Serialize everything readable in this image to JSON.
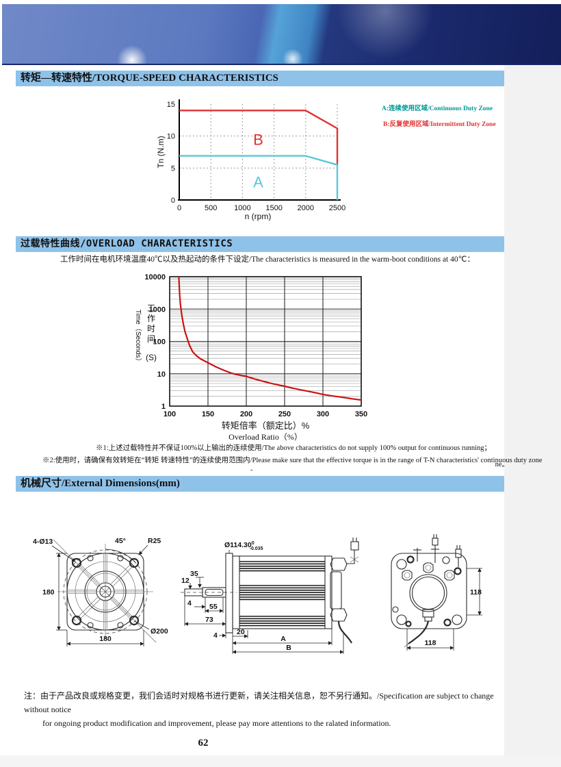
{
  "sections": {
    "torque": {
      "title": "转矩—转速特性/TORQUE-SPEED CHARACTERISTICS"
    },
    "overload": {
      "title": "过载特性曲线/OVERLOAD CHARACTERISTICS",
      "description": "工作时间在电机环境温度40℃以及热起动的条件下设定/The characteristics is measured in the warm-boot conditions at 40℃：",
      "note1": "※1:上述过载特性并不保证100%以上输出的连续使用/The above characteristics do not supply 100% output for continuous running；",
      "note2": "※2:使用时，请确保有效转矩在“转矩 转速特性”的连续使用范围内/Please make sure that the effective torque is in the range of T-N characteristics' continuous duty zone",
      "note2_dash": "-",
      "note_overflow": "ne。"
    },
    "dimensions": {
      "title": "机械尺寸/External Dimensions(mm)"
    }
  },
  "legend": {
    "a": {
      "label": "A:连续使用区域/Continuous Duty Zone",
      "color": "#009693"
    },
    "b": {
      "label": "B:反复使用区域/Intermittent Duty Zone",
      "color": "#e03131"
    }
  },
  "chart_data": [
    {
      "type": "line",
      "title": "Torque-Speed Characteristics",
      "xlabel": "n (rpm)",
      "ylabel": "Tn (N.m)",
      "xlim": [
        0,
        2500
      ],
      "ylim": [
        0,
        15
      ],
      "xticks": [
        0,
        500,
        1000,
        1500,
        2000,
        2500
      ],
      "yticks": [
        0,
        5,
        10,
        15
      ],
      "grid": "dashed",
      "series": [
        {
          "name": "B Intermittent Duty Zone limit",
          "color": "#e03131",
          "points": [
            [
              0,
              14
            ],
            [
              2000,
              14
            ],
            [
              2500,
              11.2
            ],
            [
              2500,
              5.5
            ]
          ]
        },
        {
          "name": "A Continuous Duty Zone limit",
          "color": "#57c8dc",
          "points": [
            [
              0,
              6.9
            ],
            [
              2000,
              6.9
            ],
            [
              2500,
              5.5
            ],
            [
              2500,
              0
            ]
          ]
        }
      ],
      "zone_labels": [
        {
          "text": "B",
          "x": 1250,
          "y": 8.6,
          "color": "#e03131"
        },
        {
          "text": "A",
          "x": 1250,
          "y": 2.0,
          "color": "#57c8dc"
        }
      ]
    },
    {
      "type": "line",
      "title": "Overload Characteristics",
      "xlabel_zh": "转矩倍率（额定比）%",
      "xlabel_en": "Overload Ratio（%）",
      "ylabel_en": "Time（Seconds）",
      "ylabel_zh": "工作时间",
      "ylabel_unit": "(S)",
      "xlim": [
        100,
        350
      ],
      "ylim": [
        1,
        10000
      ],
      "yscale": "log",
      "xticks": [
        100,
        150,
        200,
        250,
        300,
        350
      ],
      "yticks": [
        1,
        10,
        100,
        1000,
        10000
      ],
      "grid": "log-minor-horizontal",
      "series": [
        {
          "name": "overload time limit",
          "color": "#cc1111",
          "points": [
            [
              112,
              10000
            ],
            [
              113,
              2800
            ],
            [
              114,
              1400
            ],
            [
              116,
              600
            ],
            [
              118,
              330
            ],
            [
              120,
              200
            ],
            [
              123,
              120
            ],
            [
              126,
              75
            ],
            [
              130,
              48
            ],
            [
              135,
              36
            ],
            [
              140,
              29
            ],
            [
              150,
              22
            ],
            [
              160,
              16.5
            ],
            [
              170,
              13
            ],
            [
              180,
              10.5
            ],
            [
              190,
              9.2
            ],
            [
              200,
              8.3
            ],
            [
              210,
              7
            ],
            [
              220,
              6
            ],
            [
              230,
              5.2
            ],
            [
              240,
              4.6
            ],
            [
              250,
              4.1
            ],
            [
              260,
              3.6
            ],
            [
              270,
              3.2
            ],
            [
              280,
              2.9
            ],
            [
              290,
              2.6
            ],
            [
              300,
              2.3
            ],
            [
              310,
              2.1
            ],
            [
              320,
              1.95
            ],
            [
              330,
              1.8
            ],
            [
              340,
              1.65
            ],
            [
              350,
              1.55
            ]
          ]
        }
      ]
    }
  ],
  "drawings": {
    "front": {
      "bolt_holes": "4-Ø13",
      "angle": "45°",
      "corner_radius": "R25",
      "height": "180",
      "width": "180",
      "outer_dia": "Ø200"
    },
    "side": {
      "shaft_dia": "Ø114.30",
      "shaft_dia_sup": "0",
      "shaft_dia_sub": "-0.035",
      "dim_35": "35",
      "dim_12": "12",
      "dim_4_left": "4",
      "dim_55": "55",
      "dim_73": "73",
      "dim_4_bottom": "4",
      "dim_20": "20",
      "dim_a": "A",
      "dim_b": "B"
    },
    "rear": {
      "height": "118",
      "width": "118"
    }
  },
  "footer": {
    "note_line1": "注：由于产品改良或规格变更，我们会适时对规格书进行更新，请关注相关信息，恕不另行通知。/Specification are subject to change without notice",
    "note_line2": "for ongoing product modification and improvement, please pay more attentions to the ralated information.",
    "page_number": "62"
  }
}
